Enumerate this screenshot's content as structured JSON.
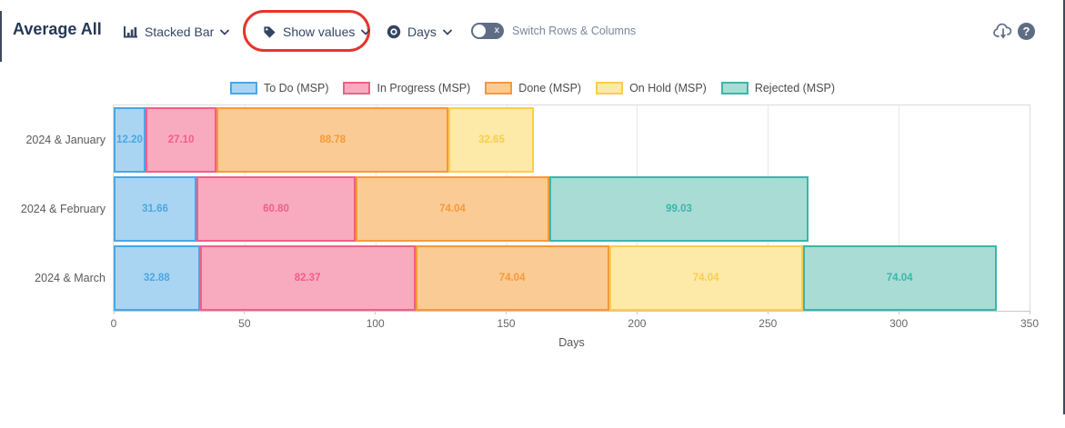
{
  "header": {
    "title": "Average All",
    "chart_type_control": {
      "label": "Stacked Bar"
    },
    "show_values_control": {
      "label": "Show values"
    },
    "unit_control": {
      "label": "Days"
    },
    "switch_control": {
      "label": "Switch Rows & Columns",
      "state": "off",
      "off_glyph": "x"
    },
    "help_glyph": "?"
  },
  "annotation": {
    "shape": "red-oval",
    "color": "#e5352b",
    "highlights": "Show values"
  },
  "chart_data": {
    "type": "bar",
    "orientation": "horizontal",
    "stacked": true,
    "xlabel": "Days",
    "xlim": [
      0,
      350
    ],
    "xticks": [
      0,
      50,
      100,
      150,
      200,
      250,
      300,
      350
    ],
    "grid": true,
    "legend_position": "top",
    "categories": [
      "2024 & January",
      "2024 & February",
      "2024 & March"
    ],
    "series": [
      {
        "name": "To Do (MSP)",
        "border_color": "#4BA6E3",
        "fill_color": "#A9D5F2",
        "values": [
          12.2,
          31.66,
          32.88
        ]
      },
      {
        "name": "In Progress (MSP)",
        "border_color": "#F15F86",
        "fill_color": "#F8ABBF",
        "values": [
          27.1,
          60.8,
          82.37
        ]
      },
      {
        "name": "Done (MSP)",
        "border_color": "#F79939",
        "fill_color": "#FBCB95",
        "values": [
          88.78,
          74.04,
          74.04
        ]
      },
      {
        "name": "On Hold (MSP)",
        "border_color": "#FACD4D",
        "fill_color": "#FDE9A8",
        "values": [
          32.65,
          0,
          74.04
        ]
      },
      {
        "name": "Rejected (MSP)",
        "border_color": "#3BB5AB",
        "fill_color": "#A9DCD5",
        "values": [
          0,
          99.03,
          74.04
        ]
      }
    ],
    "value_decimals": 2
  }
}
